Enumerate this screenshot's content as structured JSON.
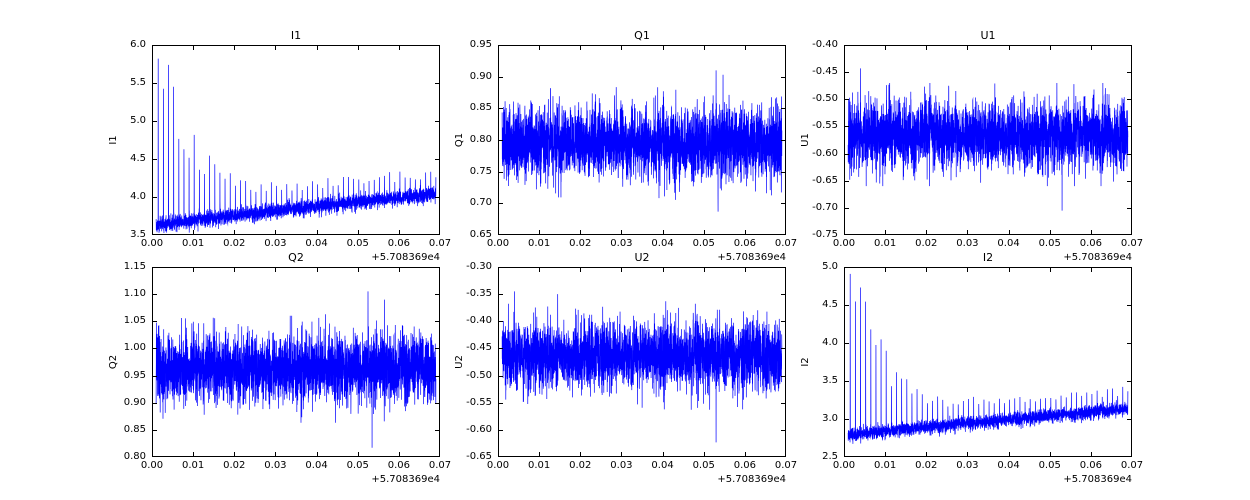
{
  "figure": {
    "background": "#ffffff",
    "frame_color": "#000000",
    "line_color": "#0000ff"
  },
  "chart_data": [
    {
      "type": "line",
      "title": "I1",
      "ylabel": "I1",
      "xlim": [
        0.0,
        0.07
      ],
      "ylim": [
        3.5,
        6.0
      ],
      "xticks": [
        0.0,
        0.01,
        0.02,
        0.03,
        0.04,
        0.05,
        0.06,
        0.07
      ],
      "xtick_labels": [
        "0.00",
        "0.01",
        "0.02",
        "0.03",
        "0.04",
        "0.05",
        "0.06",
        "0.07"
      ],
      "yticks": [
        3.5,
        4.0,
        4.5,
        5.0,
        5.5,
        6.0
      ],
      "ytick_labels": [
        "3.5",
        "4.0",
        "4.5",
        "5.0",
        "5.5",
        "6.0"
      ],
      "x_offset_label": "+5.708369e4",
      "color": "#0000ff",
      "series_model": {
        "kind": "baseline_spikes",
        "points": 3500,
        "seed": 1,
        "x_start": 0.001,
        "x_end": 0.069,
        "base_start": 3.62,
        "base_end": 4.04,
        "base_pow": 0.9,
        "noise_std": 0.05,
        "noise_clip": 0.15,
        "spike_start": 0.0015,
        "spike_period": 0.00125,
        "spike_amp0": 2.05,
        "spike_decay": 0.0075,
        "spike_floor": 0.28,
        "outliers": []
      }
    },
    {
      "type": "line",
      "title": "Q1",
      "ylabel": "Q1",
      "xlim": [
        0.0,
        0.07
      ],
      "ylim": [
        0.65,
        0.95
      ],
      "xticks": [
        0.0,
        0.01,
        0.02,
        0.03,
        0.04,
        0.05,
        0.06,
        0.07
      ],
      "xtick_labels": [
        "0.00",
        "0.01",
        "0.02",
        "0.03",
        "0.04",
        "0.05",
        "0.06",
        "0.07"
      ],
      "yticks": [
        0.65,
        0.7,
        0.75,
        0.8,
        0.85,
        0.9,
        0.95
      ],
      "ytick_labels": [
        "0.65",
        "0.70",
        "0.75",
        "0.80",
        "0.85",
        "0.90",
        "0.95"
      ],
      "x_offset_label": "+5.708369e4",
      "color": "#0000ff",
      "series_model": {
        "kind": "noise_band",
        "points": 3500,
        "seed": 2,
        "x_start": 0.001,
        "x_end": 0.069,
        "center": 0.795,
        "std": 0.028,
        "clip": 0.09,
        "outliers": [
          {
            "x": 0.053,
            "y": 0.91
          },
          {
            "x": 0.0547,
            "y": 0.903
          },
          {
            "x": 0.0535,
            "y": 0.687
          }
        ]
      }
    },
    {
      "type": "line",
      "title": "U1",
      "ylabel": "U1",
      "xlim": [
        0.0,
        0.07
      ],
      "ylim": [
        -0.75,
        -0.4
      ],
      "xticks": [
        0.0,
        0.01,
        0.02,
        0.03,
        0.04,
        0.05,
        0.06,
        0.07
      ],
      "xtick_labels": [
        "0.00",
        "0.01",
        "0.02",
        "0.03",
        "0.04",
        "0.05",
        "0.06",
        "0.07"
      ],
      "yticks": [
        -0.75,
        -0.7,
        -0.65,
        -0.6,
        -0.55,
        -0.5,
        -0.45,
        -0.4
      ],
      "ytick_labels": [
        "-0.75",
        "-0.70",
        "-0.65",
        "-0.60",
        "-0.55",
        "-0.50",
        "-0.45",
        "-0.40"
      ],
      "x_offset_label": "+5.708369e4",
      "color": "#0000ff",
      "series_model": {
        "kind": "noise_band",
        "points": 3500,
        "seed": 3,
        "x_start": 0.001,
        "x_end": 0.069,
        "center": -0.565,
        "std": 0.03,
        "clip": 0.095,
        "outliers": [
          {
            "x": 0.004,
            "y": -0.443
          },
          {
            "x": 0.053,
            "y": -0.705
          }
        ]
      }
    },
    {
      "type": "line",
      "title": "Q2",
      "ylabel": "Q2",
      "xlim": [
        0.0,
        0.07
      ],
      "ylim": [
        0.8,
        1.15
      ],
      "xticks": [
        0.0,
        0.01,
        0.02,
        0.03,
        0.04,
        0.05,
        0.06,
        0.07
      ],
      "xtick_labels": [
        "0.00",
        "0.01",
        "0.02",
        "0.03",
        "0.04",
        "0.05",
        "0.06",
        "0.07"
      ],
      "yticks": [
        0.8,
        0.85,
        0.9,
        0.95,
        1.0,
        1.05,
        1.1,
        1.15
      ],
      "ytick_labels": [
        "0.80",
        "0.85",
        "0.90",
        "0.95",
        "1.00",
        "1.05",
        "1.10",
        "1.15"
      ],
      "x_offset_label": "+5.708369e4",
      "color": "#0000ff",
      "series_model": {
        "kind": "noise_band",
        "points": 3500,
        "seed": 4,
        "x_start": 0.001,
        "x_end": 0.069,
        "center": 0.963,
        "std": 0.031,
        "clip": 0.1,
        "outliers": [
          {
            "x": 0.0525,
            "y": 1.105
          },
          {
            "x": 0.0565,
            "y": 1.09
          },
          {
            "x": 0.0535,
            "y": 0.817
          }
        ]
      }
    },
    {
      "type": "line",
      "title": "U2",
      "ylabel": "U2",
      "xlim": [
        0.0,
        0.07
      ],
      "ylim": [
        -0.65,
        -0.3
      ],
      "xticks": [
        0.0,
        0.01,
        0.02,
        0.03,
        0.04,
        0.05,
        0.06,
        0.07
      ],
      "xtick_labels": [
        "0.00",
        "0.01",
        "0.02",
        "0.03",
        "0.04",
        "0.05",
        "0.06",
        "0.07"
      ],
      "yticks": [
        -0.65,
        -0.6,
        -0.55,
        -0.5,
        -0.45,
        -0.4,
        -0.35,
        -0.3
      ],
      "ytick_labels": [
        "-0.65",
        "-0.60",
        "-0.55",
        "-0.50",
        "-0.45",
        "-0.40",
        "-0.35",
        "-0.30"
      ],
      "x_offset_label": "+5.708369e4",
      "color": "#0000ff",
      "series_model": {
        "kind": "noise_band",
        "points": 3500,
        "seed": 5,
        "x_start": 0.001,
        "x_end": 0.069,
        "center": -0.463,
        "std": 0.031,
        "clip": 0.1,
        "outliers": [
          {
            "x": 0.004,
            "y": -0.345
          },
          {
            "x": 0.0145,
            "y": -0.35
          },
          {
            "x": 0.053,
            "y": -0.623
          }
        ]
      }
    },
    {
      "type": "line",
      "title": "I2",
      "ylabel": "I2",
      "xlim": [
        0.0,
        0.07
      ],
      "ylim": [
        2.5,
        5.0
      ],
      "xticks": [
        0.0,
        0.01,
        0.02,
        0.03,
        0.04,
        0.05,
        0.06,
        0.07
      ],
      "xtick_labels": [
        "0.00",
        "0.01",
        "0.02",
        "0.03",
        "0.04",
        "0.05",
        "0.06",
        "0.07"
      ],
      "yticks": [
        2.5,
        3.0,
        3.5,
        4.0,
        4.5,
        5.0
      ],
      "ytick_labels": [
        "2.5",
        "3.0",
        "3.5",
        "4.0",
        "4.5",
        "5.0"
      ],
      "x_offset_label": "+5.708369e4",
      "color": "#0000ff",
      "series_model": {
        "kind": "baseline_spikes",
        "points": 3500,
        "seed": 6,
        "x_start": 0.001,
        "x_end": 0.069,
        "base_start": 2.78,
        "base_end": 3.13,
        "base_pow": 0.9,
        "noise_std": 0.045,
        "noise_clip": 0.14,
        "spike_start": 0.0015,
        "spike_period": 0.00125,
        "spike_amp0": 2.0,
        "spike_decay": 0.0075,
        "spike_floor": 0.24,
        "outliers": []
      }
    }
  ]
}
